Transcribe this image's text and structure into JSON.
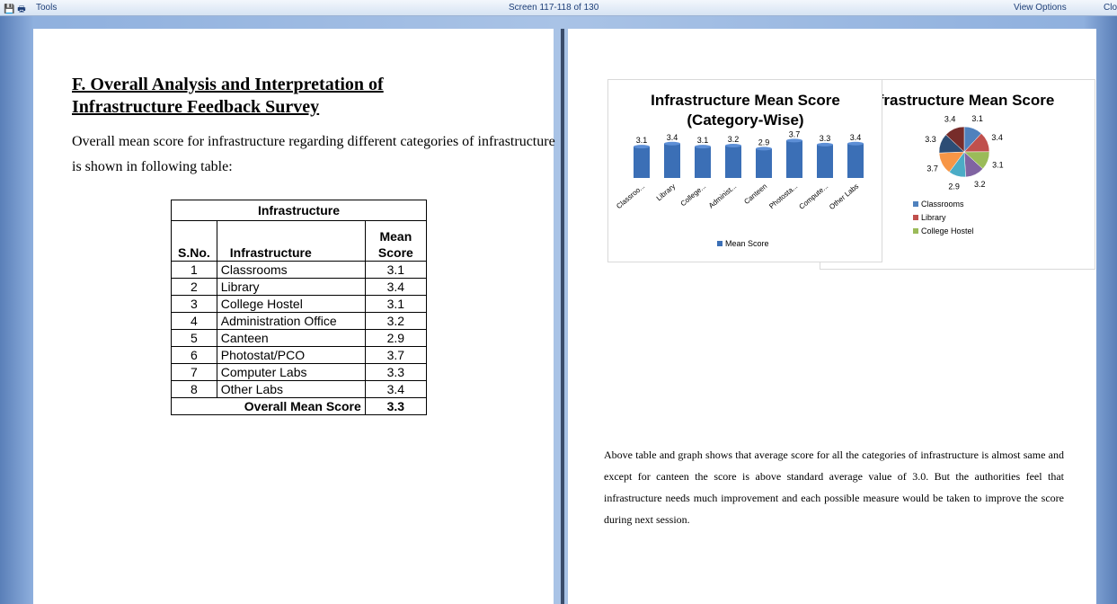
{
  "toolbar": {
    "tools": "Tools",
    "screen": "Screen 117-118 of 130",
    "view_options": "View Options",
    "close": "Close"
  },
  "document": {
    "heading": "F. Overall Analysis and Interpretation of Infrastructure Feedback Survey",
    "paragraph": "Overall mean score for infrastructure regarding different categories of infrastructure is shown in following table:",
    "table": {
      "title": "Infrastructure",
      "header": [
        "S.No.",
        "Infrastructure",
        "Mean Score"
      ],
      "rows": [
        [
          1,
          "Classrooms",
          3.1
        ],
        [
          2,
          "Library",
          3.4
        ],
        [
          3,
          "College Hostel",
          3.1
        ],
        [
          4,
          "Administration Office",
          3.2
        ],
        [
          5,
          "Canteen",
          2.9
        ],
        [
          6,
          "Photostat/PCO",
          3.7
        ],
        [
          7,
          "Computer Labs",
          3.3
        ],
        [
          8,
          "Other Labs",
          3.4
        ]
      ],
      "footer": [
        "Overall Mean Score",
        3.3
      ]
    },
    "conclusion": "Above table and graph shows that average score for all the categories of infrastructure is almost same and except for canteen the score is above standard average value of 3.0. But the authorities feel that infrastructure needs much improvement and each possible measure would be taken to improve the score during next session."
  },
  "chart_data": [
    {
      "type": "bar",
      "title": "Infrastructure Mean Score (Category-Wise)",
      "categories": [
        "Classroo...",
        "Library",
        "College...",
        "Administ...",
        "Canteen",
        "Photosta...",
        "Compute...",
        "Other Labs"
      ],
      "series": [
        {
          "name": "Mean Score",
          "color": "#3b6fb6",
          "values": [
            3.1,
            3.4,
            3.1,
            3.2,
            2.9,
            3.7,
            3.3,
            3.4
          ]
        }
      ],
      "ylim": [
        0,
        4
      ]
    },
    {
      "type": "pie",
      "title": "Infrastructure Mean Score",
      "categories": [
        "Classrooms",
        "Library",
        "College Hostel",
        null,
        null,
        null,
        null,
        null
      ],
      "values": [
        3.1,
        3.4,
        3.1,
        3.2,
        2.9,
        3.7,
        3.3,
        3.4
      ],
      "colors": [
        "#4f81bd",
        "#c0504d",
        "#9bbb59",
        "#8064a2",
        "#4bacc6",
        "#f79646",
        "#2c4d75",
        "#772c2a"
      ]
    }
  ]
}
